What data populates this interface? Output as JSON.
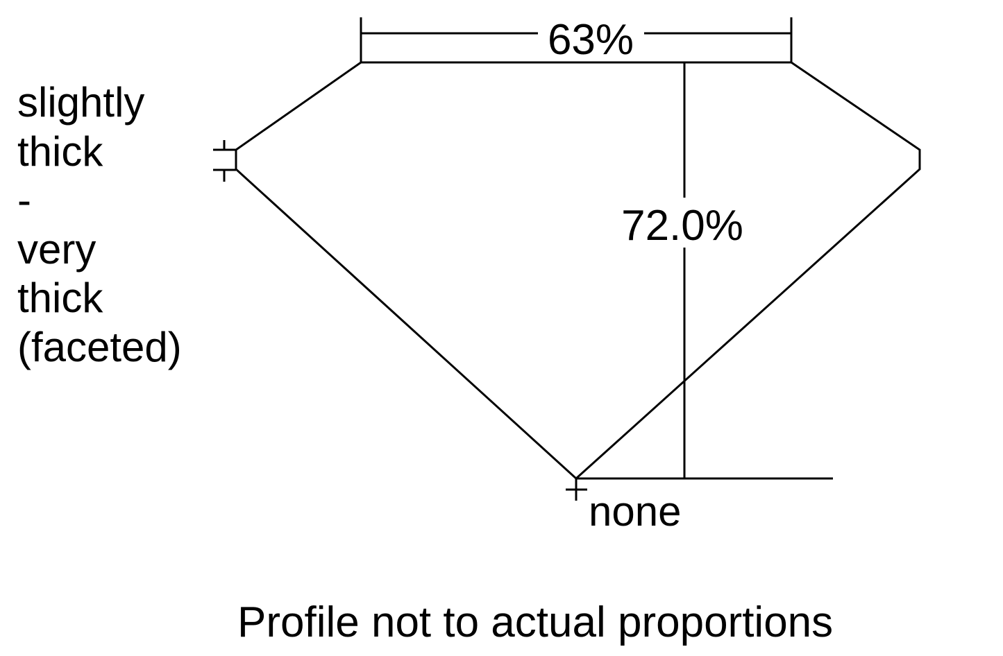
{
  "diagram": {
    "girdle_label_lines": [
      "slightly",
      "thick",
      "-",
      "very",
      "thick",
      "(faceted)"
    ],
    "table_label": "63%",
    "depth_label": "72.0%",
    "culet_label": "none",
    "caption": "Profile not to actual proportions",
    "line_color": "#000000"
  }
}
